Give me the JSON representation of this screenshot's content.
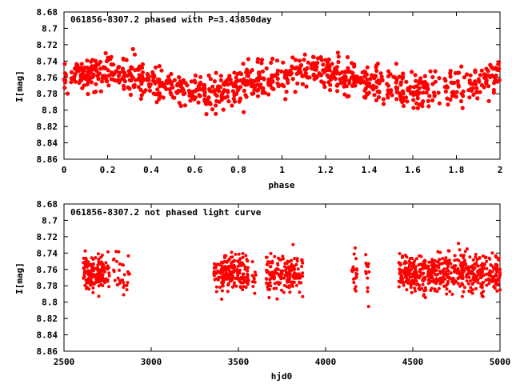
{
  "chart_data": [
    {
      "type": "scatter",
      "title": "061856-8307.2 phased with P=3.43850day",
      "xlabel": "phase",
      "ylabel": "I[mag]",
      "xlim": [
        0,
        2
      ],
      "ylim": [
        8.68,
        8.86
      ],
      "y_inverted": true,
      "xticks": [
        "0",
        "0.2",
        "0.4",
        "0.6",
        "0.8",
        "1",
        "1.2",
        "1.4",
        "1.6",
        "1.8",
        "2"
      ],
      "yticks": [
        "8.68",
        "8.7",
        "8.72",
        "8.74",
        "8.76",
        "8.78",
        "8.8",
        "8.82",
        "8.84",
        "8.86"
      ],
      "marker_color": "#ff0000",
      "grid": false
    },
    {
      "type": "scatter",
      "title": "061856-8307.2 not phased light curve",
      "xlabel": "hjd0",
      "ylabel": "I[mag]",
      "xlim": [
        2500,
        5000
      ],
      "ylim": [
        8.68,
        8.86
      ],
      "y_inverted": true,
      "xticks": [
        "2500",
        "3000",
        "3500",
        "4000",
        "4500",
        "5000"
      ],
      "yticks": [
        "8.68",
        "8.7",
        "8.72",
        "8.74",
        "8.76",
        "8.78",
        "8.8",
        "8.82",
        "8.84",
        "8.86"
      ],
      "marker_color": "#ff0000",
      "grid": false
    }
  ]
}
